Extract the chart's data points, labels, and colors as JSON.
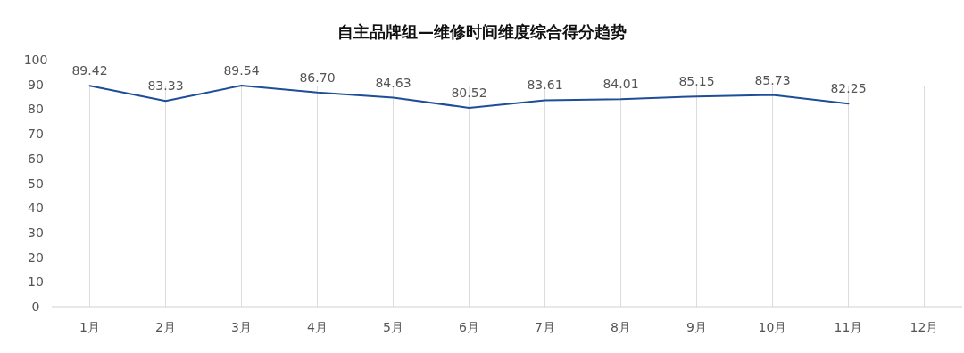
{
  "chart_data": {
    "type": "line",
    "title": "自主品牌组—维修时间维度综合得分趋势",
    "categories": [
      "1月",
      "2月",
      "3月",
      "4月",
      "5月",
      "6月",
      "7月",
      "8月",
      "9月",
      "10月",
      "11月",
      "12月"
    ],
    "series": [
      {
        "color": "#1f4e99",
        "values": [
          89.42,
          83.33,
          89.54,
          86.7,
          84.63,
          80.52,
          83.61,
          84.01,
          85.15,
          85.73,
          82.25,
          null
        ]
      }
    ],
    "value_labels": [
      "89.42",
      "83.33",
      "89.54",
      "86.70",
      "84.63",
      "80.52",
      "83.61",
      "84.01",
      "85.15",
      "85.73",
      "82.25",
      null
    ],
    "ylim": [
      0,
      100
    ],
    "yticks": [
      0,
      10,
      20,
      30,
      40,
      50,
      60,
      70,
      80,
      90,
      100
    ],
    "grid": "x",
    "marker": "none",
    "line_style": "solid"
  }
}
